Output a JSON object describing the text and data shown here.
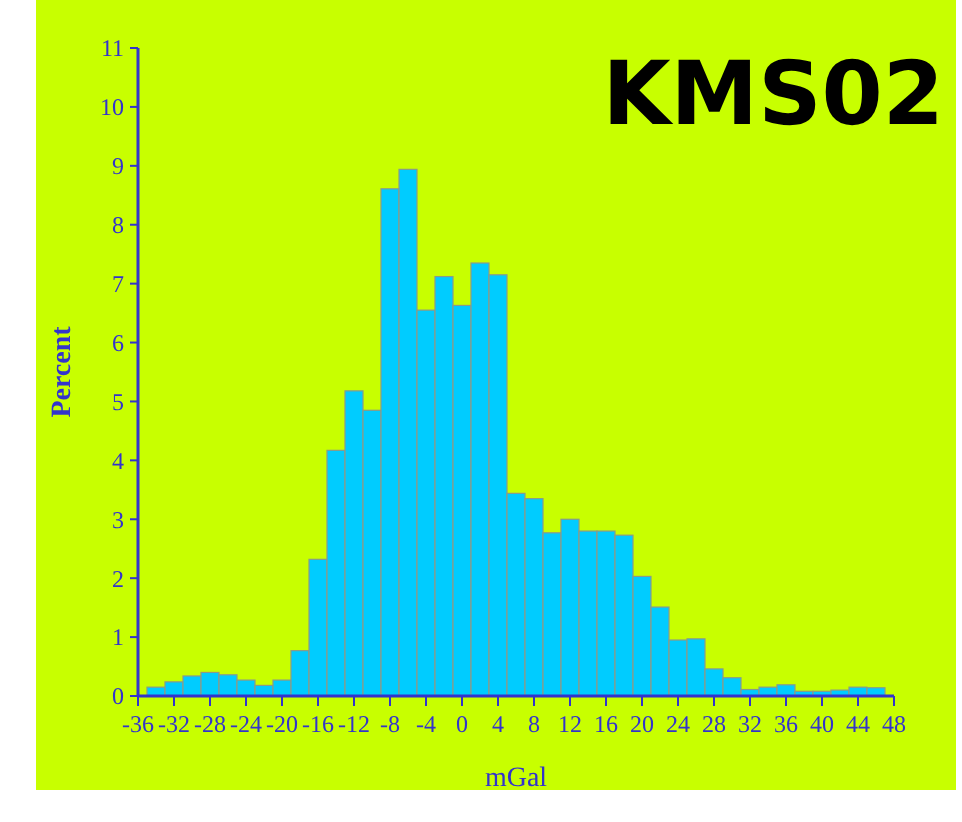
{
  "chart_data": {
    "type": "histogram",
    "title": "KMS02",
    "xlabel": "mGal",
    "ylabel": "Percent",
    "color": "#00ccff",
    "bins": [
      -35,
      -33,
      -31,
      -29,
      -27,
      -25,
      -23,
      -21,
      -19,
      -17,
      -15,
      -13,
      -11,
      -9,
      -7,
      -5,
      -3,
      -1,
      1,
      3,
      5,
      7,
      9,
      11,
      13,
      15,
      17,
      19,
      21,
      23,
      25,
      27,
      29,
      31,
      33,
      35,
      37,
      39,
      41,
      43,
      45,
      47
    ],
    "values": [
      0.15,
      0.24,
      0.34,
      0.4,
      0.36,
      0.27,
      0.18,
      0.27,
      0.77,
      2.32,
      4.17,
      5.18,
      4.85,
      8.61,
      8.94,
      6.55,
      7.12,
      6.63,
      7.35,
      7.15,
      3.44,
      3.35,
      2.77,
      3.0,
      2.8,
      2.8,
      2.73,
      2.03,
      1.51,
      0.95,
      0.97,
      0.46,
      0.31,
      0.11,
      0.15,
      0.19,
      0.08,
      0.08,
      0.1,
      0.15,
      0.14
    ],
    "xlim": [
      -36,
      48
    ],
    "xticks": [
      -36,
      -32,
      -28,
      -24,
      -20,
      -16,
      -12,
      -8,
      -4,
      0,
      4,
      8,
      12,
      16,
      20,
      24,
      28,
      32,
      36,
      40,
      44,
      48
    ],
    "ylim": [
      0,
      11
    ],
    "yticks": [
      0,
      1,
      2,
      3,
      4,
      5,
      6,
      7,
      8,
      9,
      10,
      11
    ],
    "grid": false
  }
}
